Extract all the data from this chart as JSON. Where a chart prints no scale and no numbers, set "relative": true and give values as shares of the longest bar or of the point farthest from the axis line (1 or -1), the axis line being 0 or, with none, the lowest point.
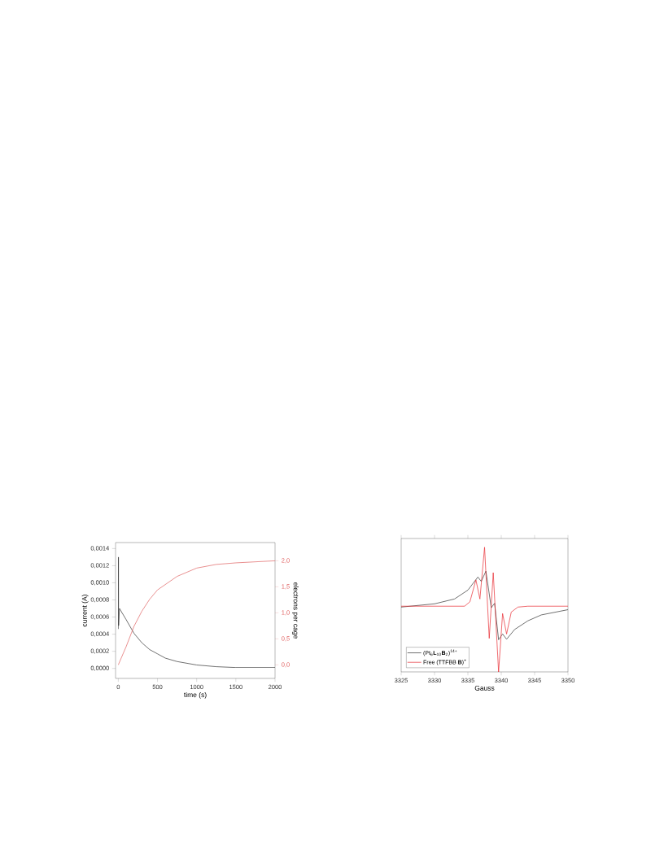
{
  "chart_data": [
    {
      "type": "line",
      "xlabel": "time (s)",
      "ylabel": "current (A)",
      "y2label": "electrons per cage",
      "xlim": [
        -35,
        2000
      ],
      "xticks": [
        0,
        500,
        1000,
        1500,
        2000
      ],
      "ylim": [
        -0.000117,
        0.00147
      ],
      "yticks": [
        {
          "value": 0,
          "label": "0,0000"
        },
        {
          "value": 0.0002,
          "label": "0,0002"
        },
        {
          "value": 0.0004,
          "label": "0,0004"
        },
        {
          "value": 0.0006,
          "label": "0,0006"
        },
        {
          "value": 0.0008,
          "label": "0,0008"
        },
        {
          "value": 0.001,
          "label": "0,0010"
        },
        {
          "value": 0.0012,
          "label": "0,0012"
        },
        {
          "value": 0.0014,
          "label": "0,0014"
        }
      ],
      "y2lim": [
        -0.26,
        2.35
      ],
      "y2ticks": [
        {
          "value": 0,
          "label": "0,0"
        },
        {
          "value": 0.5,
          "label": "0,5"
        },
        {
          "value": 1,
          "label": "1,0"
        },
        {
          "value": 1.5,
          "label": "1,5"
        },
        {
          "value": 2,
          "label": "2,0"
        }
      ],
      "series": [
        {
          "color": "#333333",
          "x": [
            0,
            2,
            4,
            15,
            100,
            200,
            300,
            400,
            500,
            600,
            750,
            1000,
            1250,
            1500,
            2000
          ],
          "values": [
            0.00046,
            0.0013,
            0.0005,
            0.0007,
            0.00057,
            0.00041,
            0.0003,
            0.00022,
            0.00017,
            0.00012,
            8e-05,
            4e-05,
            2e-05,
            1e-05,
            1e-05
          ]
        },
        {
          "color": "#e06060",
          "axis": "y2",
          "x": [
            0,
            100,
            200,
            300,
            400,
            500,
            750,
            1000,
            1250,
            1500,
            2000
          ],
          "values": [
            0,
            0.35,
            0.74,
            1.03,
            1.26,
            1.44,
            1.7,
            1.86,
            1.93,
            1.96,
            2.0
          ]
        }
      ]
    },
    {
      "type": "line",
      "xlabel": "Gauss",
      "xlim": [
        3325,
        3350
      ],
      "xticks": [
        3325,
        3330,
        3335,
        3340,
        3345,
        3350
      ],
      "relative": true,
      "legend": "bottom left",
      "series": [
        {
          "name": "(Pt$_{6}$**L**$_{10}$**B**$_{2}$)$^{14+}$",
          "color": "#333333",
          "x": [
            3325,
            3330,
            3333,
            3335,
            3336.5,
            3337.0,
            3337.7,
            3338.5,
            3339.0,
            3339.6,
            3340.2,
            3340.8,
            3342,
            3344,
            3346,
            3350
          ],
          "values": [
            0.52,
            0.546,
            0.585,
            0.656,
            0.761,
            0.726,
            0.808,
            0.515,
            0.55,
            0.258,
            0.304,
            0.262,
            0.34,
            0.41,
            0.457,
            0.499
          ]
        },
        {
          "name": "Free (TTFBB **B**)$^{+}$",
          "color": "#e8282f",
          "x": [
            3325,
            3334.5,
            3335.3,
            3336.2,
            3336.8,
            3337.5,
            3338.2,
            3338.8,
            3339.6,
            3340.2,
            3340.8,
            3341.5,
            3342.5,
            3344,
            3350
          ],
          "values": [
            0.527,
            0.527,
            0.562,
            0.738,
            0.585,
            1,
            0.269,
            0.796,
            0,
            0.468,
            0.304,
            0.48,
            0.52,
            0.527,
            0.527
          ]
        }
      ]
    }
  ]
}
